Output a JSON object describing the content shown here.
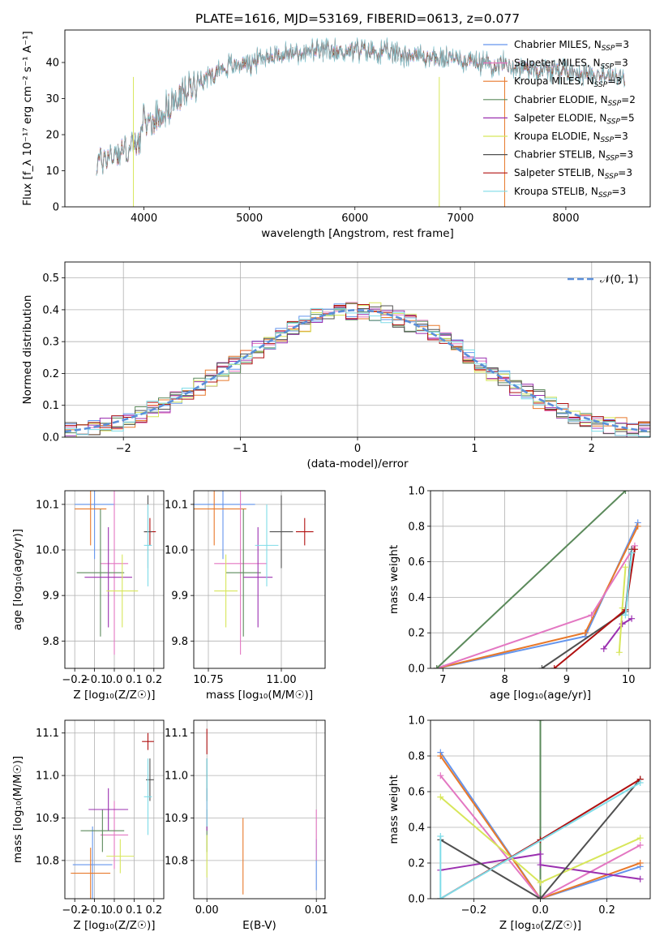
{
  "colors": {
    "Chabrier MILES": "#6495ED",
    "Salpeter MILES": "#E377C2",
    "Kroupa MILES": "#E8792B",
    "Chabrier ELODIE": "#5B8A5B",
    "Salpeter ELODIE": "#9B30B0",
    "Kroupa ELODIE": "#D7E65A",
    "Chabrier STELIB": "#505050",
    "Salpeter STELIB": "#B01010",
    "Kroupa STELIB": "#7FDCE8",
    "normal": "#5B8FD9"
  },
  "chart_data": [
    {
      "id": "spectrum",
      "type": "line",
      "title": "PLATE=1616, MJD=53169, FIBERID=0613, z=0.077",
      "xlabel": "wavelength [Angstrom, rest frame]",
      "ylabel": "Flux [f_λ 10⁻¹⁷ erg cm⁻² s⁻¹ A⁻¹]",
      "xlim": [
        3250,
        8800
      ],
      "ylim": [
        0,
        49
      ],
      "xticks": [
        4000,
        5000,
        6000,
        7000,
        8000
      ],
      "yticks": [
        0,
        10,
        20,
        30,
        40
      ],
      "grid": false,
      "legend_position": "top-right",
      "continuum": {
        "x": [
          3550,
          3650,
          3750,
          3850,
          3950,
          4000,
          4100,
          4200,
          4300,
          4400,
          4500,
          4600,
          4700,
          4800,
          4900,
          5000,
          5200,
          5400,
          5600,
          5800,
          6000,
          6200,
          6400,
          6600,
          6800,
          7000,
          7200,
          7400,
          7600,
          7800,
          8000,
          8200,
          8400,
          8560
        ],
        "y": [
          12,
          14,
          15,
          16,
          18,
          23,
          24,
          27,
          29,
          32,
          35,
          36,
          38,
          39,
          39.5,
          40,
          42,
          42.5,
          43,
          43,
          43.5,
          43,
          42.5,
          42,
          41,
          41,
          40,
          39.5,
          38.5,
          38,
          37.5,
          37,
          36.5,
          36
        ]
      },
      "series": [
        {
          "name": "Chabrier MILES, N_SSP=3"
        },
        {
          "name": "Salpeter MILES, N_SSP=3"
        },
        {
          "name": "Kroupa MILES, N_SSP=3"
        },
        {
          "name": "Chabrier ELODIE, N_SSP=2"
        },
        {
          "name": "Salpeter ELODIE, N_SSP=5"
        },
        {
          "name": "Kroupa ELODIE, N_SSP=3"
        },
        {
          "name": "Chabrier STELIB, N_SSP=3"
        },
        {
          "name": "Salpeter STELIB, N_SSP=3"
        },
        {
          "name": "Kroupa STELIB, N_SSP=3"
        }
      ]
    },
    {
      "id": "residuals",
      "type": "histogram",
      "xlabel": "(data-model)/error",
      "ylabel": "Normed distribution",
      "xlim": [
        -2.5,
        2.5
      ],
      "ylim": [
        0,
        0.55
      ],
      "xticks": [
        -2,
        -1,
        0,
        1,
        2
      ],
      "yticks": [
        0.0,
        0.1,
        0.2,
        0.3,
        0.4,
        0.5
      ],
      "grid": true,
      "legend": {
        "label": "𝒩(0, 1)",
        "position": "top-right"
      },
      "bin_width": 0.1,
      "base_density": "normal",
      "noise_amplitude": 0.03
    },
    {
      "id": "z-age",
      "type": "errorbar",
      "xlabel": "Z [log₁₀(Z/Z☉)]",
      "ylabel": "age  [log₁₀(age/yr)]",
      "xlim": [
        -0.25,
        0.25
      ],
      "ylim": [
        9.74,
        10.13
      ],
      "xticks": [
        -0.2,
        -0.1,
        0.0,
        0.1,
        0.2
      ],
      "yticks": [
        9.8,
        9.9,
        10.0,
        10.1
      ],
      "grid": true,
      "points": [
        {
          "model": "Chabrier MILES",
          "x": -0.1,
          "xerr": 0.1,
          "y": 10.1,
          "yerr": 0.12
        },
        {
          "model": "Kroupa MILES",
          "x": -0.12,
          "xerr": 0.08,
          "y": 10.09,
          "yerr": 0.08
        },
        {
          "model": "Salpeter MILES",
          "x": 0.0,
          "xerr": 0.07,
          "y": 9.97,
          "yerr": 0.2
        },
        {
          "model": "Chabrier ELODIE",
          "x": -0.07,
          "xerr": 0.12,
          "y": 9.95,
          "yerr": 0.14
        },
        {
          "model": "Salpeter ELODIE",
          "x": -0.03,
          "xerr": 0.12,
          "y": 9.94,
          "yerr": 0.11
        },
        {
          "model": "Kroupa ELODIE",
          "x": 0.04,
          "xerr": 0.08,
          "y": 9.91,
          "yerr": 0.08
        },
        {
          "model": "Salpeter STELIB",
          "x": 0.18,
          "xerr": 0.03,
          "y": 10.04,
          "yerr": 0.03
        },
        {
          "model": "Chabrier STELIB",
          "x": 0.17,
          "xerr": 0.02,
          "y": 10.04,
          "yerr": 0.08
        },
        {
          "model": "Kroupa STELIB",
          "x": 0.17,
          "xerr": 0.02,
          "y": 10.01,
          "yerr": 0.09
        }
      ]
    },
    {
      "id": "mass-age",
      "type": "errorbar",
      "xlabel": "mass [log₁₀(M/M☉)]",
      "ylabel": "",
      "xlim": [
        10.7,
        11.15
      ],
      "ylim": [
        9.74,
        10.13
      ],
      "xticks": [
        10.75,
        11.0
      ],
      "yticks": [
        9.8,
        9.9,
        10.0,
        10.1
      ],
      "grid": true,
      "points": [
        {
          "model": "Chabrier MILES",
          "x": 10.8,
          "xerr": 0.11,
          "y": 10.1,
          "yerr": 0.12
        },
        {
          "model": "Kroupa MILES",
          "x": 10.77,
          "xerr": 0.11,
          "y": 10.09,
          "yerr": 0.08
        },
        {
          "model": "Salpeter MILES",
          "x": 10.86,
          "xerr": 0.09,
          "y": 9.97,
          "yerr": 0.2
        },
        {
          "model": "Chabrier ELODIE",
          "x": 10.87,
          "xerr": 0.06,
          "y": 9.95,
          "yerr": 0.14
        },
        {
          "model": "Salpeter ELODIE",
          "x": 10.92,
          "xerr": 0.05,
          "y": 9.94,
          "yerr": 0.11
        },
        {
          "model": "Kroupa ELODIE",
          "x": 10.81,
          "xerr": 0.04,
          "y": 9.91,
          "yerr": 0.08
        },
        {
          "model": "Salpeter STELIB",
          "x": 11.08,
          "xerr": 0.03,
          "y": 10.04,
          "yerr": 0.03
        },
        {
          "model": "Chabrier STELIB",
          "x": 11.0,
          "xerr": 0.04,
          "y": 10.04,
          "yerr": 0.08
        },
        {
          "model": "Kroupa STELIB",
          "x": 10.95,
          "xerr": 0.04,
          "y": 10.01,
          "yerr": 0.09
        }
      ]
    },
    {
      "id": "age-weight",
      "type": "line",
      "xlabel": "age  [log₁₀(age/yr)]",
      "ylabel": "mass weight",
      "xlim": [
        6.8,
        10.35
      ],
      "ylim": [
        0,
        1.0
      ],
      "xticks": [
        7,
        8,
        9,
        10
      ],
      "yticks": [
        0.0,
        0.2,
        0.4,
        0.6,
        0.8,
        1.0
      ],
      "grid": true,
      "series": [
        {
          "model": "Chabrier MILES",
          "x": [
            6.9,
            9.3,
            10.15
          ],
          "y": [
            0.0,
            0.18,
            0.82
          ]
        },
        {
          "model": "Kroupa MILES",
          "x": [
            6.9,
            9.3,
            10.15
          ],
          "y": [
            0.0,
            0.2,
            0.8
          ]
        },
        {
          "model": "Salpeter MILES",
          "x": [
            6.9,
            9.4,
            10.1
          ],
          "y": [
            0.0,
            0.3,
            0.69
          ]
        },
        {
          "model": "Chabrier ELODIE",
          "x": [
            6.9,
            9.95
          ],
          "y": [
            0.0,
            1.0
          ]
        },
        {
          "model": "Salpeter ELODIE",
          "x": [
            9.6,
            9.9,
            10.05
          ],
          "y": [
            0.11,
            0.25,
            0.28
          ]
        },
        {
          "model": "Kroupa ELODIE",
          "x": [
            9.85,
            9.9,
            9.95
          ],
          "y": [
            0.09,
            0.34,
            0.57
          ]
        },
        {
          "model": "Chabrier STELIB",
          "x": [
            8.6,
            9.95,
            10.05
          ],
          "y": [
            0.0,
            0.32,
            0.67
          ]
        },
        {
          "model": "Salpeter STELIB",
          "x": [
            8.8,
            9.95,
            10.1
          ],
          "y": [
            0.0,
            0.33,
            0.67
          ]
        },
        {
          "model": "Kroupa STELIB",
          "x": [
            9.95,
            9.95,
            10.05
          ],
          "y": [
            0.3,
            0.3,
            0.65
          ]
        }
      ]
    },
    {
      "id": "z-mass",
      "type": "errorbar",
      "xlabel": "Z [log₁₀(Z/Z☉)]",
      "ylabel": "mass [log₁₀(M/M☉)]",
      "xlim": [
        -0.25,
        0.25
      ],
      "ylim": [
        10.71,
        11.13
      ],
      "xticks": [
        -0.2,
        -0.1,
        0.0,
        0.1,
        0.2
      ],
      "yticks": [
        10.8,
        10.9,
        11.0,
        11.1
      ],
      "grid": true,
      "points": [
        {
          "model": "Chabrier MILES",
          "x": -0.11,
          "xerr": 0.1,
          "y": 10.79,
          "yerr": 0.09
        },
        {
          "model": "Kroupa MILES",
          "x": -0.12,
          "xerr": 0.1,
          "y": 10.77,
          "yerr": 0.06
        },
        {
          "model": "Salpeter MILES",
          "x": 0.0,
          "xerr": 0.07,
          "y": 10.86,
          "yerr": 0.08
        },
        {
          "model": "Chabrier ELODIE",
          "x": -0.06,
          "xerr": 0.11,
          "y": 10.87,
          "yerr": 0.05
        },
        {
          "model": "Salpeter ELODIE",
          "x": -0.03,
          "xerr": 0.1,
          "y": 10.92,
          "yerr": 0.05
        },
        {
          "model": "Kroupa ELODIE",
          "x": 0.03,
          "xerr": 0.07,
          "y": 10.81,
          "yerr": 0.04
        },
        {
          "model": "Salpeter STELIB",
          "x": 0.17,
          "xerr": 0.03,
          "y": 11.08,
          "yerr": 0.02
        },
        {
          "model": "Chabrier STELIB",
          "x": 0.18,
          "xerr": 0.02,
          "y": 10.99,
          "yerr": 0.05
        },
        {
          "model": "Kroupa STELIB",
          "x": 0.17,
          "xerr": 0.02,
          "y": 10.95,
          "yerr": 0.09
        }
      ]
    },
    {
      "id": "ebv-mass",
      "type": "errorbar",
      "xlabel": "E(B-V)",
      "ylabel": "",
      "xlim": [
        -0.0012,
        0.0108
      ],
      "ylim": [
        10.71,
        11.13
      ],
      "xticks": [
        0.0,
        0.01
      ],
      "yticks": [
        10.8,
        10.9,
        11.0,
        11.1
      ],
      "grid": true,
      "points": [
        {
          "model": "Chabrier MILES",
          "x": 0.01,
          "xerr": 0,
          "y": 10.79,
          "yerr": 0.06
        },
        {
          "model": "Kroupa MILES",
          "x": 0.0033,
          "xerr": 0,
          "y": 10.81,
          "yerr": 0.09
        },
        {
          "model": "Salpeter MILES",
          "x": 0.01,
          "xerr": 0,
          "y": 10.86,
          "yerr": 0.06
        },
        {
          "model": "Chabrier ELODIE",
          "x": 0.0,
          "xerr": 0,
          "y": 10.87,
          "yerr": 0.05
        },
        {
          "model": "Salpeter ELODIE",
          "x": 0.0,
          "xerr": 0,
          "y": 10.92,
          "yerr": 0.05
        },
        {
          "model": "Kroupa ELODIE",
          "x": 0.0,
          "xerr": 0,
          "y": 10.81,
          "yerr": 0.05
        },
        {
          "model": "Salpeter STELIB",
          "x": 0.0,
          "xerr": 0,
          "y": 11.08,
          "yerr": 0.03
        },
        {
          "model": "Chabrier STELIB",
          "x": 0.0,
          "xerr": 0,
          "y": 10.99,
          "yerr": 0.05
        },
        {
          "model": "Kroupa STELIB",
          "x": 0.0,
          "xerr": 0,
          "y": 10.96,
          "yerr": 0.08
        }
      ]
    },
    {
      "id": "z-weight",
      "type": "line",
      "xlabel": "Z [log₁₀(Z/Z☉)]",
      "ylabel": "mass weight",
      "xlim": [
        -0.33,
        0.33
      ],
      "ylim": [
        0,
        1.0
      ],
      "xticks": [
        -0.2,
        0.0,
        0.2
      ],
      "yticks": [
        0.0,
        0.2,
        0.4,
        0.6,
        0.8,
        1.0
      ],
      "grid": true,
      "series": [
        {
          "model": "Chabrier MILES",
          "x": [
            -0.3,
            0.0,
            0.3
          ],
          "y": [
            0.82,
            0.0,
            0.18
          ]
        },
        {
          "model": "Kroupa MILES",
          "x": [
            -0.3,
            0.0,
            0.3
          ],
          "y": [
            0.8,
            0.0,
            0.2
          ]
        },
        {
          "model": "Salpeter MILES",
          "x": [
            -0.3,
            0.0,
            0.3
          ],
          "y": [
            0.69,
            0.0,
            0.3
          ]
        },
        {
          "model": "Chabrier ELODIE",
          "x": [
            0.0,
            0.0
          ],
          "y": [
            0.0,
            1.0
          ]
        },
        {
          "model": "Salpeter ELODIE",
          "x": [
            -0.3,
            0.0,
            0.0,
            0.3
          ],
          "y": [
            0.16,
            0.25,
            0.19,
            0.11
          ]
        },
        {
          "model": "Kroupa ELODIE",
          "x": [
            -0.3,
            0.0,
            0.3
          ],
          "y": [
            0.57,
            0.09,
            0.34
          ]
        },
        {
          "model": "Chabrier STELIB",
          "x": [
            -0.3,
            0.0,
            0.3
          ],
          "y": [
            0.33,
            0.0,
            0.67
          ]
        },
        {
          "model": "Salpeter STELIB",
          "x": [
            -0.3,
            0.0,
            0.3
          ],
          "y": [
            0.0,
            0.33,
            0.67
          ]
        },
        {
          "model": "Kroupa STELIB",
          "x": [
            -0.3,
            -0.3,
            0.3
          ],
          "y": [
            0.35,
            0.0,
            0.65
          ]
        }
      ]
    }
  ]
}
